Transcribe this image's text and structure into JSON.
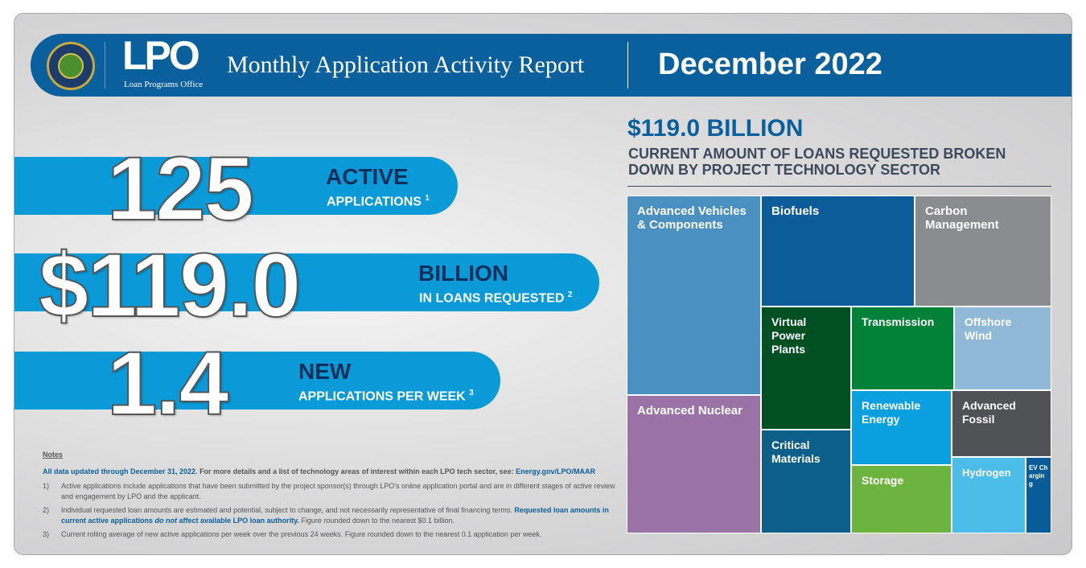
{
  "header": {
    "logo_text": "LPO",
    "logo_subtitle": "Loan Programs Office",
    "seal_text": "Department of Energy - United States of America",
    "title": "Monthly Application Activity Report",
    "period": "December 2022"
  },
  "stats": [
    {
      "value": "125",
      "label": "ACTIVE",
      "sublabel": "APPLICATIONS",
      "note": "1"
    },
    {
      "value": "$119.0",
      "label": "BILLION",
      "sublabel": "IN LOANS REQUESTED",
      "note": "2"
    },
    {
      "value": "1.4",
      "label": "NEW",
      "sublabel": "APPLICATIONS PER WEEK",
      "note": "3"
    }
  ],
  "notes": {
    "heading": "Notes",
    "updated": "All data updated through December 31, 2022.",
    "details": " For more details and a list of technology areas of interest within each LPO tech sector, see: ",
    "link": "Energy.gov/LPO/MAAR",
    "items": [
      {
        "num": "1)",
        "text": "Active applications include applications that have been submitted by the project sponsor(s) through LPO's online application portal and are in different stages of active review and engagement by LPO and the applicant."
      },
      {
        "num": "2)",
        "text": "Individual requested loan amounts are estimated and potential, subject to change, and not necessarily representative of final financing terms. ",
        "bold1": "Requested loan amounts in current active applications ",
        "italic": "do not",
        "bold2": " affect available LPO loan authority.",
        "tail": " Figure rounded down to the nearest $0.1 billion."
      },
      {
        "num": "3)",
        "text": "Current rolling average of new active applications per week over the previous 24 weeks. Figure rounded down to the nearest 0.1 application per week."
      }
    ]
  },
  "treemap": {
    "total": "$119.0 BILLION",
    "subtitle": "CURRENT AMOUNT OF LOANS REQUESTED BROKEN DOWN BY PROJECT TECHNOLOGY SECTOR",
    "sectors": [
      {
        "name": "Advanced Vehicles & Components",
        "color": "#4a90c0"
      },
      {
        "name": "Advanced Nuclear",
        "color": "#9b72a5"
      },
      {
        "name": "Biofuels",
        "color": "#0d5c9a"
      },
      {
        "name": "Carbon Management",
        "color": "#8a8c90"
      },
      {
        "name": "Virtual Power Plants",
        "color": "#005024"
      },
      {
        "name": "Critical Materials",
        "color": "#0b5f88"
      },
      {
        "name": "Transmission",
        "color": "#028238"
      },
      {
        "name": "Offshore Wind",
        "color": "#8fb9d6"
      },
      {
        "name": "Renewable Energy",
        "color": "#0aa0e0"
      },
      {
        "name": "Advanced Fossil",
        "color": "#505256"
      },
      {
        "name": "Storage",
        "color": "#6db33f"
      },
      {
        "name": "Hydrogen",
        "color": "#4bbde8"
      },
      {
        "name": "EV Charging",
        "color": "#0a5c99"
      }
    ]
  }
}
